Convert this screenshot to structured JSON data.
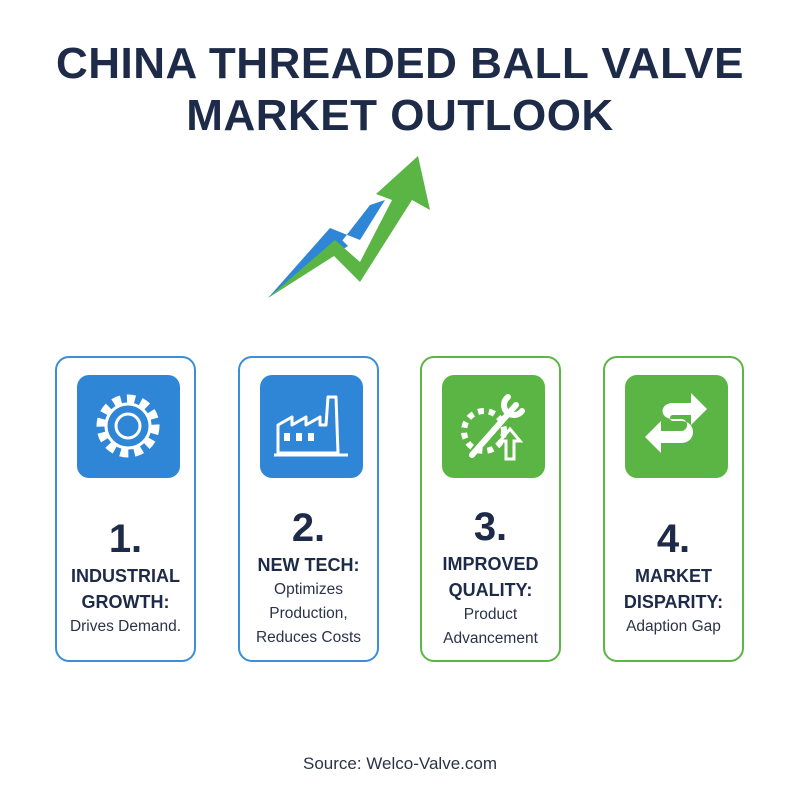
{
  "header": {
    "title": [
      "CHINA THREADED BALL VALVE",
      "MARKET OUTLOOK"
    ]
  },
  "cards": [
    {
      "number": "1.",
      "heading": [
        "INDUSTRIAL",
        "GROWTH:"
      ],
      "body": [
        "Drives Demand."
      ]
    },
    {
      "number": "2.",
      "heading": [
        "NEW TECH:"
      ],
      "body": [
        "Optimizes",
        "Production,",
        "Reduces Costs"
      ]
    },
    {
      "number": "3.",
      "heading": [
        "IMPROVED",
        "QUALITY:"
      ],
      "body": [
        "Product",
        "Advancement"
      ]
    },
    {
      "number": "4.",
      "heading": [
        "MARKET",
        "DISPARITY:"
      ],
      "body": [
        "Adaption Gap"
      ]
    }
  ],
  "footer": {
    "source": "Source: Welco-Valve.com"
  }
}
